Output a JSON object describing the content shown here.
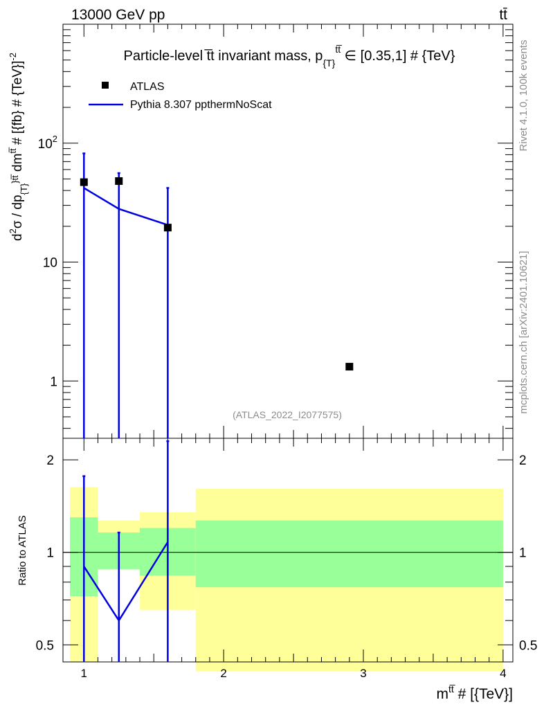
{
  "header": {
    "energy_label": "13000 GeV pp",
    "process_label": "tt̄"
  },
  "side": {
    "rivet_label": "Rivet 4.1.0,  100k events",
    "mcplots_label": "mcplots.cern.ch [arXiv:2401.10621]"
  },
  "watermark": "(ATLAS_2022_I2077575)",
  "chart_data": {
    "type": "scatter",
    "title": "Particle-level t̅t invariant mass, p_{T}^{tt̅} ∈ [0.35,1] # {TeV}",
    "title_main": "Particle-level t̅t invariant mass, p",
    "title_sub": "{T}",
    "title_sup": "tt̅",
    "title_tail": " ∈ [0.35,1] # {TeV}",
    "xlabel": "m",
    "xlabel_sup": "tt̅",
    "xlabel_tail": " # [{TeV}]",
    "ylabel": "d²σ / dp_{T}^{tt̅} dm^{tt̅} # [{fb} # {TeV}⁻²]",
    "ylabel_parts": {
      "a": "d",
      "b": "2",
      "c": "σ / dp",
      "d": "{T}",
      "e": "}",
      "f": "tt̅",
      "g": " dm",
      "h": "tt̅",
      "i": " # [{fb} # {TeV}]",
      "j": "-2"
    },
    "ratio_ylabel": "Ratio to ATLAS",
    "x_range": [
      0.85,
      4.07
    ],
    "y_range": [
      0.33,
      1000
    ],
    "y_scale": "log",
    "ratio_range": [
      0.44,
      2.35
    ],
    "x_ticks": [
      "1",
      "2",
      "3",
      "4"
    ],
    "y_ticks": [
      "10²",
      "10",
      "1"
    ],
    "ratio_ticks": [
      "2",
      "1",
      "0.5"
    ],
    "legend": [
      {
        "name": "ATLAS",
        "marker": "square"
      },
      {
        "name": "Pythia 8.307 ppthermNoScat",
        "marker": "line"
      }
    ],
    "series": [
      {
        "name": "ATLAS",
        "x": [
          1.0,
          1.25,
          1.6,
          2.9
        ],
        "y": [
          47,
          48,
          19.5,
          1.32
        ]
      },
      {
        "name": "Pythia 8.307 ppthermNoScat",
        "x": [
          1.0,
          1.25,
          1.6
        ],
        "y": [
          42,
          28,
          20.5
        ],
        "y_err_up": [
          82,
          56,
          42
        ],
        "y_err_down": [
          0.33,
          0.33,
          0.33
        ]
      }
    ],
    "ratio": {
      "bins": [
        0.9,
        1.1,
        1.4,
        1.8,
        4.0
      ],
      "band_inner": [
        [
          0.72,
          1.3
        ],
        [
          0.88,
          1.16
        ],
        [
          0.84,
          1.2
        ],
        [
          0.77,
          1.27
        ]
      ],
      "band_outer": [
        [
          0.44,
          1.63
        ],
        [
          0.88,
          1.27
        ],
        [
          0.65,
          1.35
        ],
        [
          0.41,
          1.61
        ]
      ],
      "mc_x": [
        1.0,
        1.25,
        1.6
      ],
      "mc_y": [
        0.9,
        0.6,
        1.08
      ],
      "mc_err_up": [
        1.77,
        1.16,
        2.3
      ]
    }
  }
}
